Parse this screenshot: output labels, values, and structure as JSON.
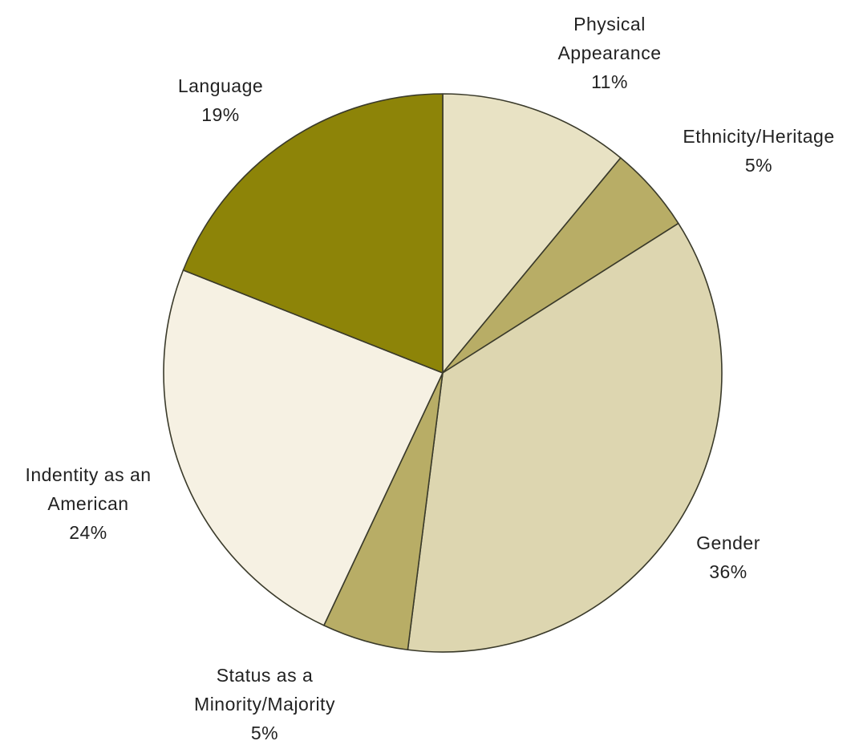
{
  "chart_data": {
    "type": "pie",
    "title": "",
    "start": "12 o'clock",
    "direction": "clockwise",
    "slices": [
      {
        "label": [
          "Physical",
          "Appearance"
        ],
        "value": 11,
        "value_label": "11%",
        "color": "#e8e2c4"
      },
      {
        "label": [
          "Ethnicity/Heritage"
        ],
        "value": 5,
        "value_label": "5%",
        "color": "#b8ad66"
      },
      {
        "label": [
          "Gender"
        ],
        "value": 36,
        "value_label": "36%",
        "color": "#ddd6b0"
      },
      {
        "label": [
          "Status as a",
          "Minority/Majority"
        ],
        "value": 5,
        "value_label": "5%",
        "color": "#b8ad66"
      },
      {
        "label": [
          "Indentity as an",
          "American"
        ],
        "value": 24,
        "value_label": "24%",
        "color": "#f6f1e3"
      },
      {
        "label": [
          "Language"
        ],
        "value": 19,
        "value_label": "19%",
        "color": "#8d8408"
      }
    ]
  }
}
